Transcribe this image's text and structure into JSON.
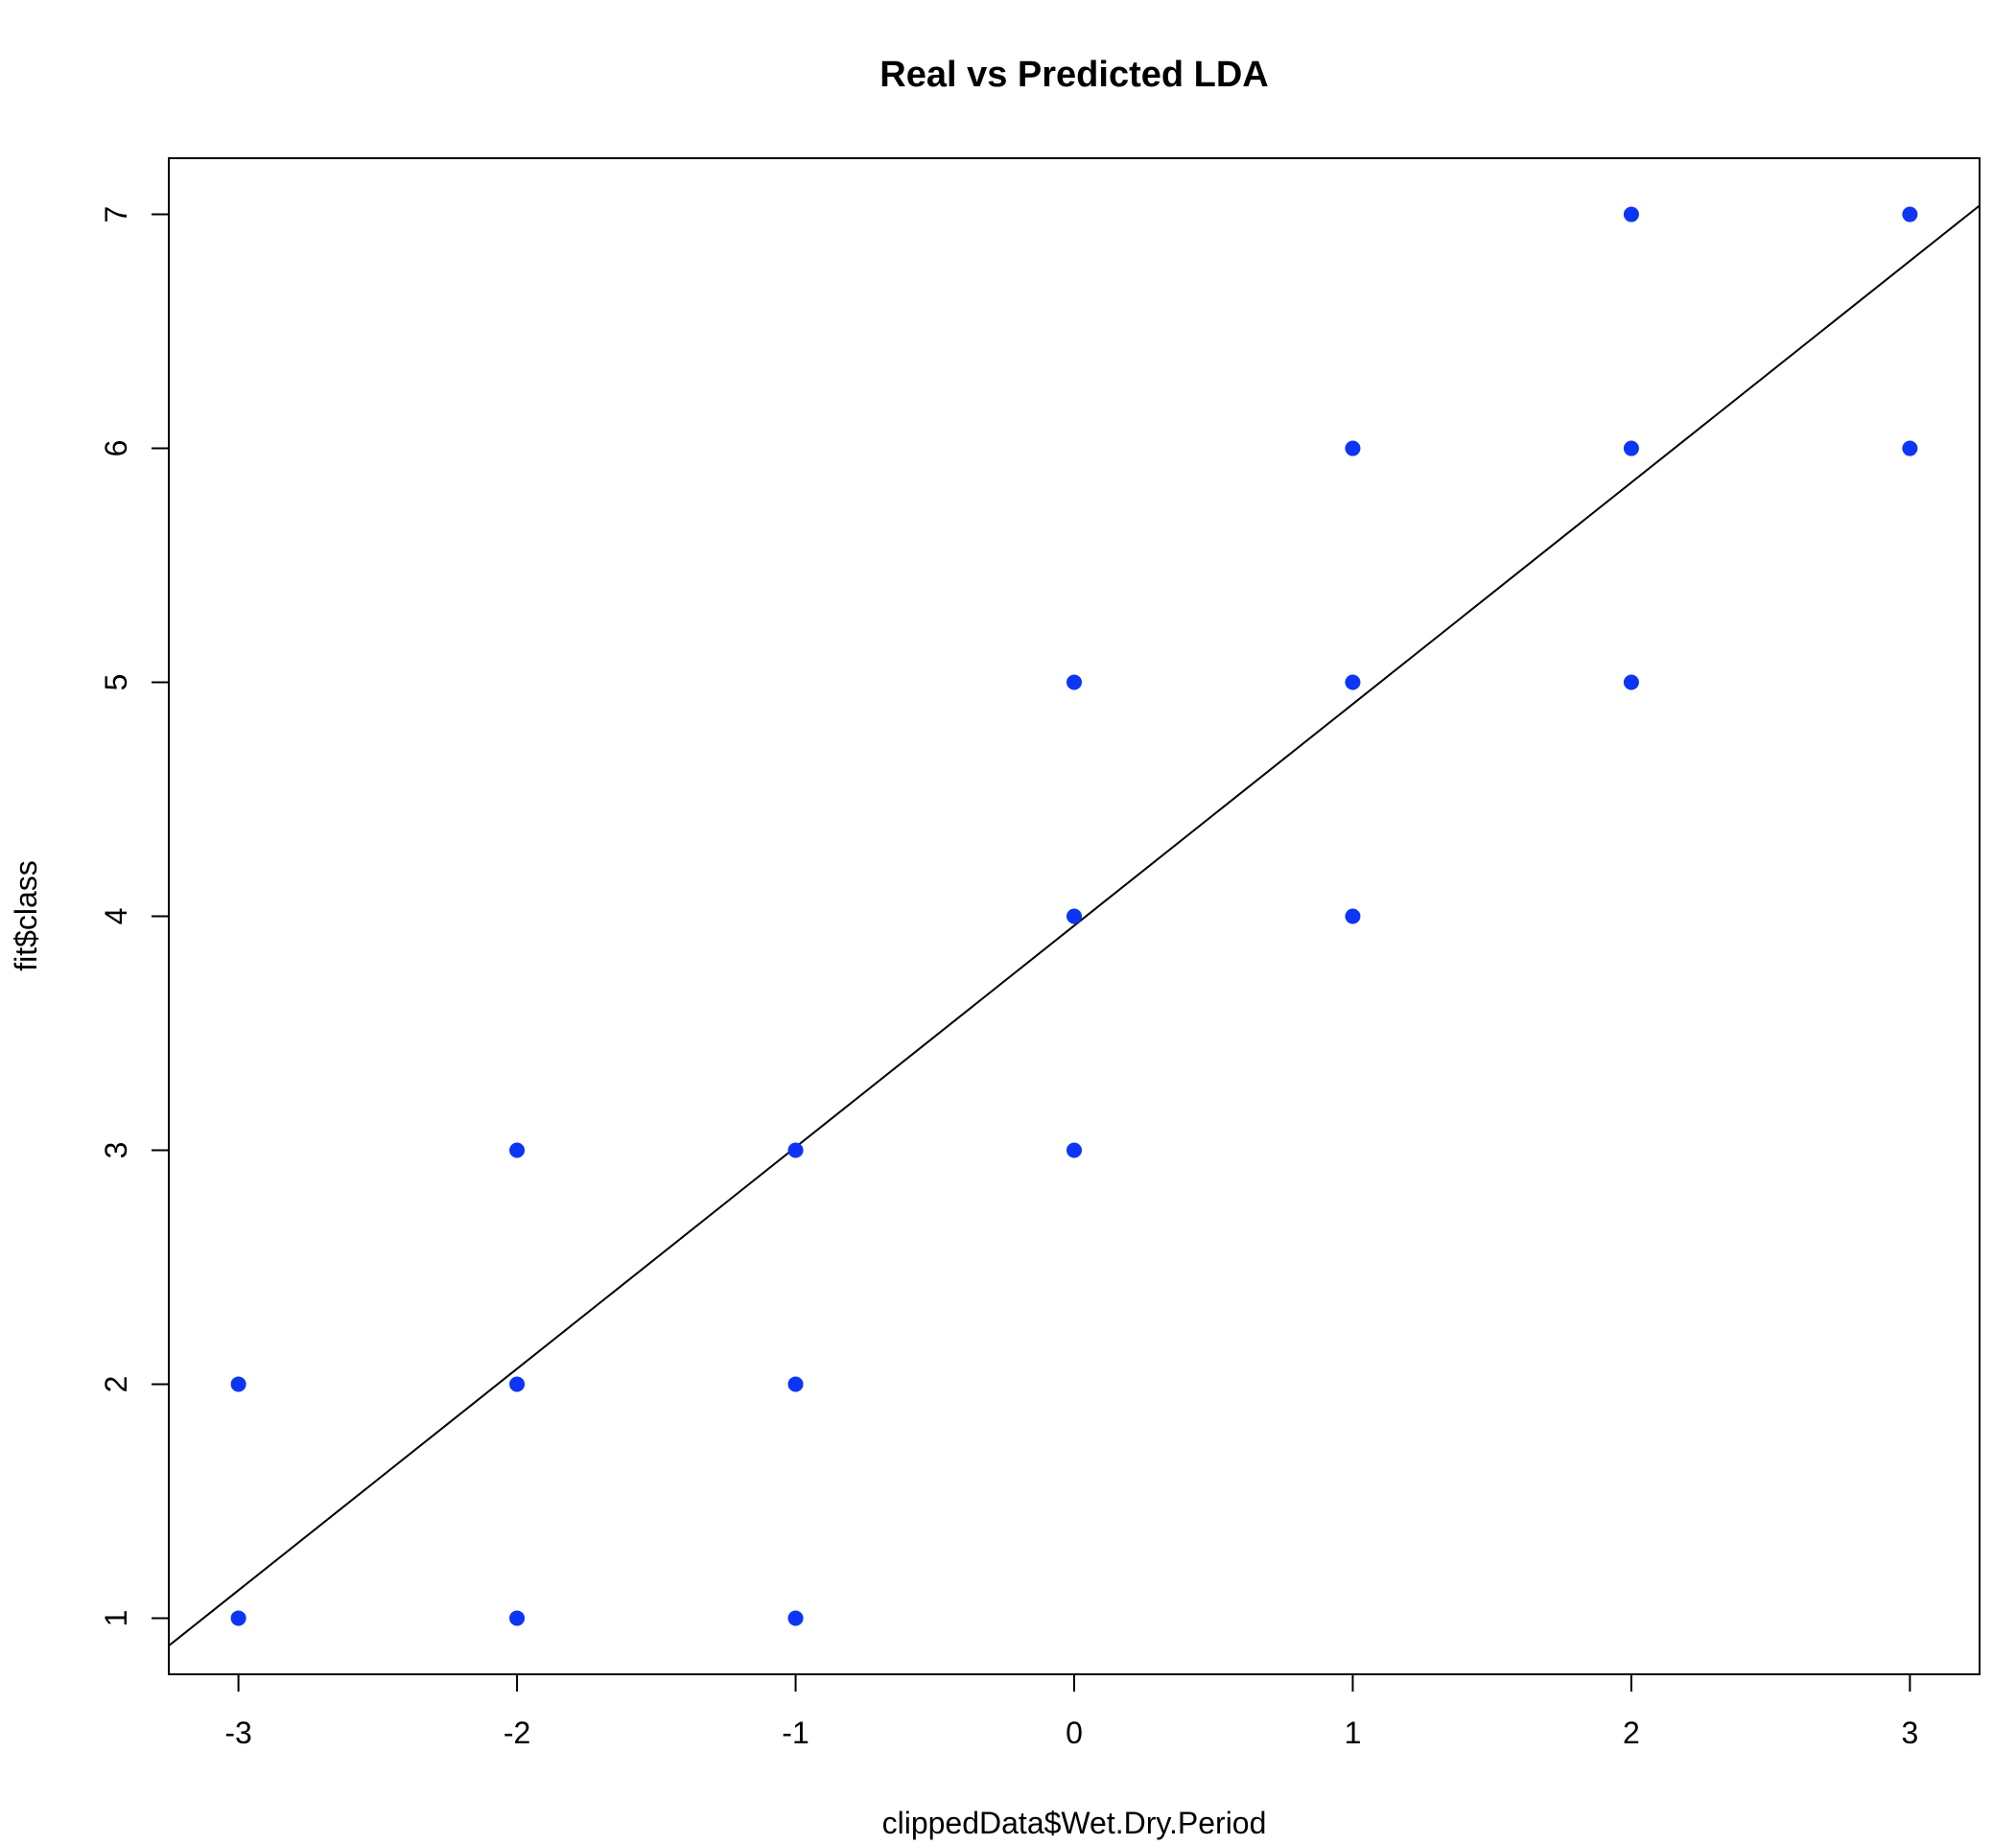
{
  "chart_data": {
    "type": "scatter",
    "title": "Real vs Predicted LDA",
    "xlabel": "clippedData$Wet.Dry.Period",
    "ylabel": "fit$class",
    "xlim": [
      -3.25,
      3.25
    ],
    "ylim": [
      0.76,
      7.24
    ],
    "xticks": [
      -3,
      -2,
      -1,
      0,
      1,
      2,
      3
    ],
    "yticks": [
      1,
      2,
      3,
      4,
      5,
      6,
      7
    ],
    "point_color": "#0d35f5",
    "line_color": "#000000",
    "grid": false,
    "series": [
      {
        "points": [
          [
            -3,
            1
          ],
          [
            -3,
            2
          ],
          [
            -2,
            1
          ],
          [
            -2,
            2
          ],
          [
            -2,
            3
          ],
          [
            -1,
            1
          ],
          [
            -1,
            2
          ],
          [
            -1,
            3
          ],
          [
            0,
            3
          ],
          [
            0,
            4
          ],
          [
            0,
            5
          ],
          [
            1,
            4
          ],
          [
            1,
            5
          ],
          [
            1,
            6
          ],
          [
            2,
            5
          ],
          [
            2,
            6
          ],
          [
            2,
            7
          ],
          [
            3,
            6
          ],
          [
            3,
            7
          ]
        ]
      }
    ],
    "fit_line": {
      "intercept": 3.96,
      "slope": 0.947
    }
  }
}
